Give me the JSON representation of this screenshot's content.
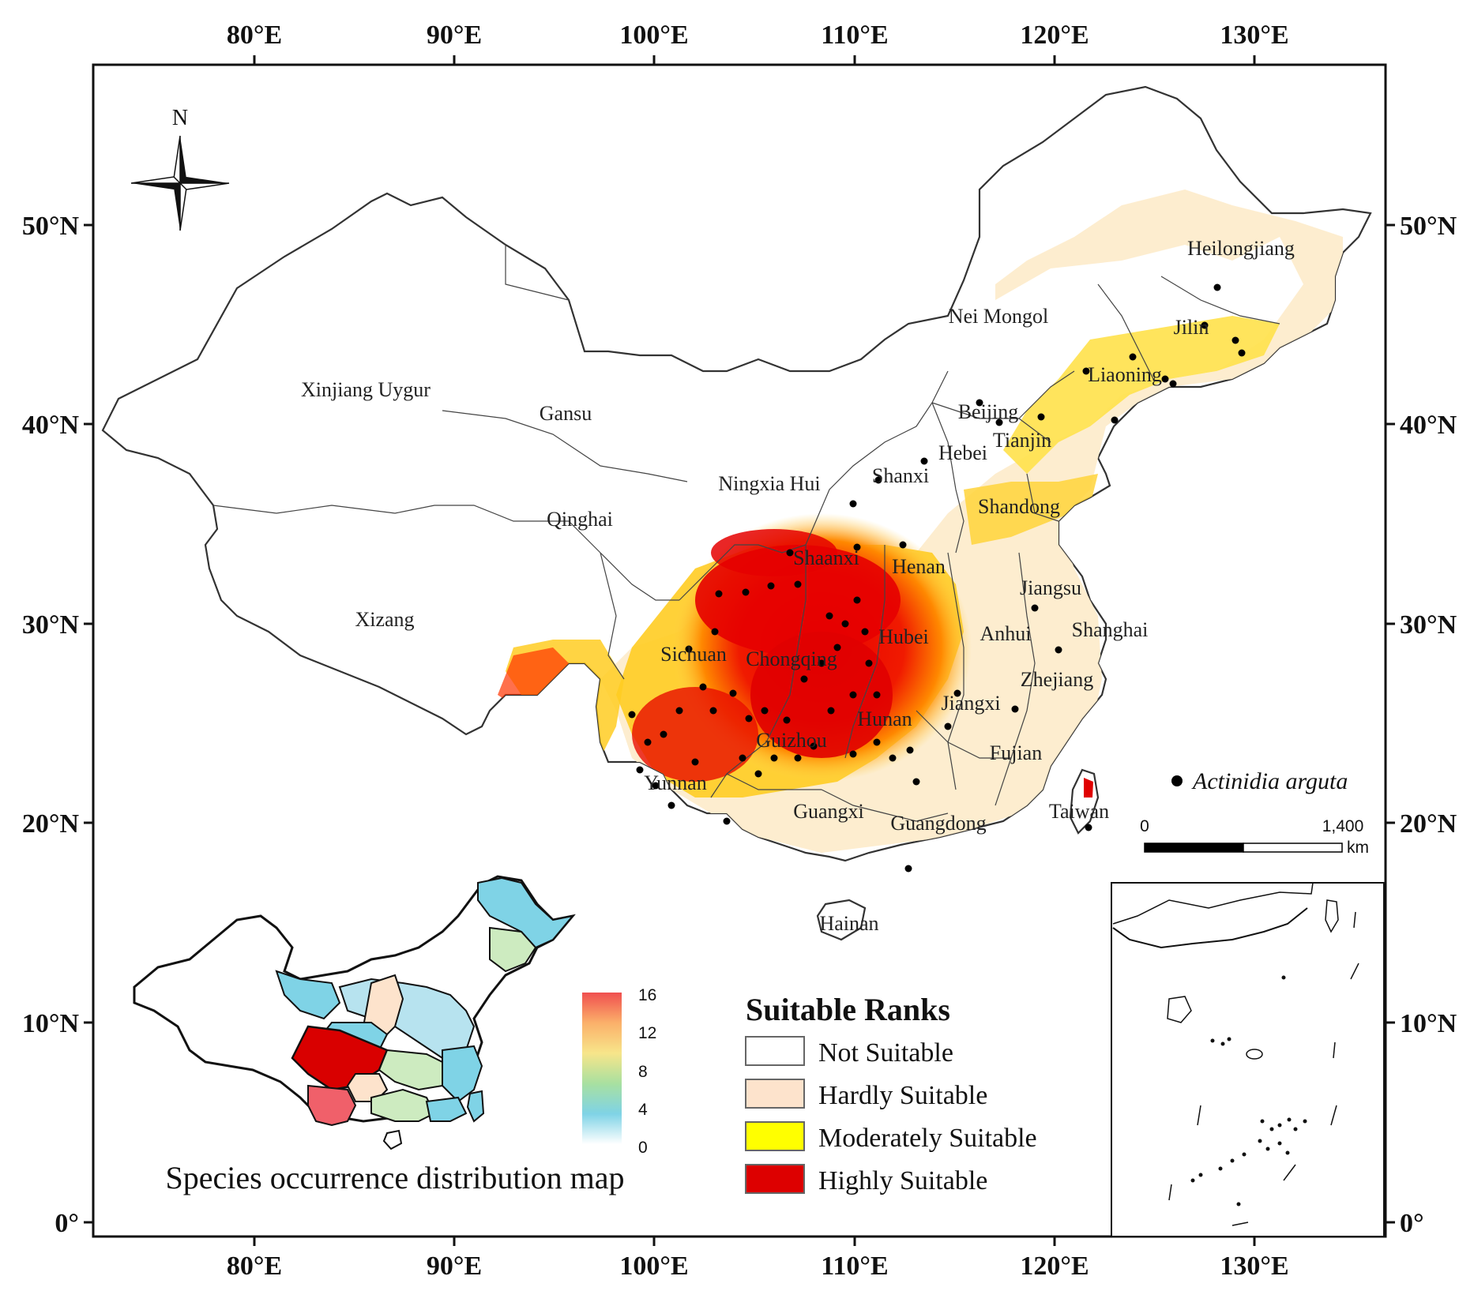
{
  "axes": {
    "lon_labels": [
      "80°E",
      "90°E",
      "100°E",
      "110°E",
      "120°E",
      "130°E"
    ],
    "lat_labels": [
      "50°N",
      "40°N",
      "30°N",
      "20°N",
      "10°N",
      "0°"
    ]
  },
  "north_arrow": {
    "label": "N",
    "icon": "north-arrow-icon"
  },
  "provinces": [
    "Heilongjiang",
    "Jilin",
    "Liaoning",
    "Nei Mongol",
    "Xinjiang Uygur",
    "Gansu",
    "Beijing",
    "Tianjin",
    "Hebei",
    "Ningxia Hui",
    "Shanxi",
    "Shandong",
    "Qinghai",
    "Shaanxi",
    "Henan",
    "Jiangsu",
    "Xizang",
    "Sichuan",
    "Chongqing",
    "Hubei",
    "Anhui",
    "Shanghai",
    "Zhejiang",
    "Jiangxi",
    "Hunan",
    "Guizhou",
    "Fujian",
    "Yunnan",
    "Guangxi",
    "Guangdong",
    "Taiwan",
    "Hainan"
  ],
  "species_legend": {
    "label": "Actinidia arguta",
    "marker_color": "#000000"
  },
  "scale_bar": {
    "start": "0",
    "end": "1,400",
    "unit": "km"
  },
  "legend": {
    "title": "Suitable Ranks",
    "items": [
      {
        "label": "Not Suitable",
        "color": "#ffffff"
      },
      {
        "label": "Hardly Suitable",
        "color": "#fde3cc"
      },
      {
        "label": "Moderately Suitable",
        "color": "#ffff00"
      },
      {
        "label": "Highly Suitable",
        "color": "#dd0000"
      }
    ]
  },
  "occurrence_inset": {
    "title": "Species occurrence distribution map",
    "colorbar_ticks": [
      "16",
      "12",
      "8",
      "4",
      "0"
    ],
    "colorbar_min": 0,
    "colorbar_max": 16,
    "colorbar_colors": [
      "#ffffff",
      "#7fd3e6",
      "#a8e0a0",
      "#f7e58a",
      "#fbb06a",
      "#f04f4f"
    ]
  }
}
